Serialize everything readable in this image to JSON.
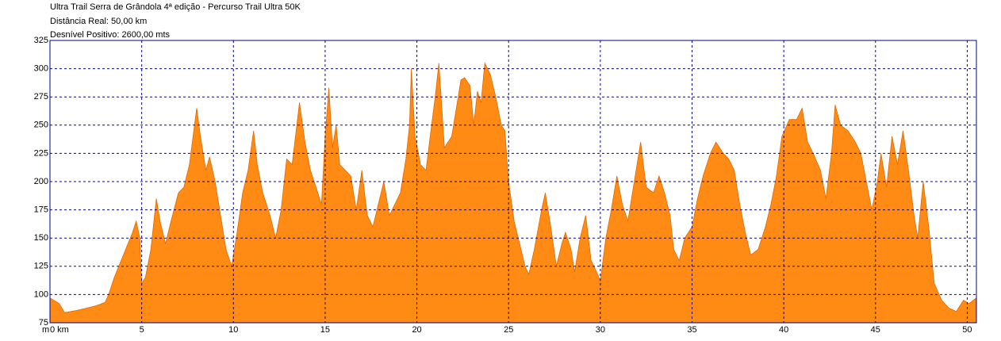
{
  "chart_data": {
    "type": "area",
    "title_lines": [
      "Ultra Trail Serra de Grândola 4ª edição - Percurso Trail Ultra 50K",
      "Distância Real: 50,00 km",
      "Desnível Positivo: 2600,00 mts"
    ],
    "ylabel": "m",
    "x": [
      0,
      0.5,
      0.8,
      1.5,
      2,
      2.5,
      3,
      3.2,
      3.5,
      4,
      4.5,
      4.7,
      4.9,
      5.0,
      5.2,
      5.5,
      5.8,
      6.0,
      6.3,
      6.6,
      7.0,
      7.3,
      7.6,
      8.0,
      8.2,
      8.5,
      8.7,
      9.0,
      9.3,
      9.6,
      9.9,
      10.2,
      10.5,
      10.8,
      11.1,
      11.3,
      11.6,
      12.0,
      12.3,
      12.6,
      12.9,
      13.2,
      13.6,
      13.9,
      14.2,
      14.5,
      14.8,
      15.0,
      15.2,
      15.4,
      15.6,
      15.8,
      16.1,
      16.4,
      16.7,
      17.0,
      17.3,
      17.6,
      17.9,
      18.2,
      18.5,
      18.8,
      19.1,
      19.4,
      19.6,
      19.7,
      19.9,
      20.2,
      20.5,
      20.8,
      21.0,
      21.2,
      21.5,
      21.9,
      22.2,
      22.4,
      22.6,
      22.9,
      23.1,
      23.3,
      23.5,
      23.7,
      24.0,
      24.3,
      24.6,
      24.8,
      25.0,
      25.3,
      25.6,
      25.9,
      26.1,
      26.4,
      26.8,
      27.0,
      27.3,
      27.6,
      27.9,
      28.1,
      28.4,
      28.6,
      28.9,
      29.2,
      29.5,
      29.8,
      30.0,
      30.3,
      30.6,
      30.9,
      31.2,
      31.5,
      31.8,
      32.0,
      32.2,
      32.5,
      32.9,
      33.2,
      33.5,
      33.8,
      34.0,
      34.3,
      34.6,
      35.0,
      35.3,
      35.6,
      36.0,
      36.3,
      36.7,
      37.0,
      37.3,
      37.6,
      37.9,
      38.2,
      38.6,
      39.0,
      39.3,
      39.6,
      39.9,
      40.3,
      40.7,
      41.0,
      41.3,
      41.6,
      42.0,
      42.3,
      42.6,
      42.8,
      43.1,
      43.5,
      43.9,
      44.2,
      44.5,
      44.8,
      45.1,
      45.3,
      45.6,
      45.9,
      46.2,
      46.5,
      46.8,
      47.1,
      47.3,
      47.6,
      47.9,
      48.2,
      48.6,
      49.0,
      49.4,
      49.8,
      50.1,
      50.5
    ],
    "series": [
      {
        "color": "#ff8a14",
        "values": [
          97,
          92,
          84,
          86,
          88,
          90,
          93,
          100,
          115,
          135,
          155,
          165,
          150,
          110,
          115,
          140,
          185,
          165,
          145,
          165,
          190,
          195,
          215,
          265,
          240,
          210,
          222,
          200,
          170,
          140,
          125,
          155,
          190,
          210,
          245,
          215,
          190,
          170,
          150,
          175,
          220,
          215,
          270,
          235,
          210,
          195,
          180,
          240,
          283,
          230,
          250,
          215,
          210,
          205,
          175,
          210,
          170,
          160,
          180,
          200,
          170,
          180,
          190,
          220,
          250,
          300,
          240,
          215,
          210,
          250,
          275,
          305,
          230,
          240,
          270,
          290,
          292,
          285,
          250,
          280,
          270,
          305,
          295,
          275,
          250,
          245,
          200,
          165,
          145,
          125,
          118,
          140,
          175,
          190,
          160,
          125,
          145,
          155,
          140,
          120,
          150,
          170,
          130,
          120,
          112,
          150,
          175,
          205,
          180,
          165,
          195,
          215,
          235,
          195,
          190,
          205,
          190,
          170,
          140,
          130,
          150,
          160,
          185,
          205,
          225,
          235,
          225,
          220,
          210,
          180,
          155,
          135,
          140,
          160,
          180,
          205,
          240,
          255,
          255,
          265,
          235,
          225,
          210,
          185,
          225,
          268,
          250,
          245,
          235,
          225,
          200,
          175,
          200,
          225,
          195,
          240,
          215,
          245,
          210,
          170,
          150,
          200,
          160,
          110,
          95,
          88,
          85,
          95,
          92,
          97
        ]
      }
    ],
    "xlim": [
      0,
      50.5
    ],
    "xticks": [
      {
        "value": 0,
        "label": "0 km"
      },
      5,
      10,
      15,
      20,
      25,
      30,
      35,
      40,
      45,
      50
    ],
    "ylim": [
      75,
      325
    ],
    "yticks": [
      75,
      100,
      125,
      150,
      175,
      200,
      225,
      250,
      275,
      300,
      325
    ],
    "grid": true
  }
}
